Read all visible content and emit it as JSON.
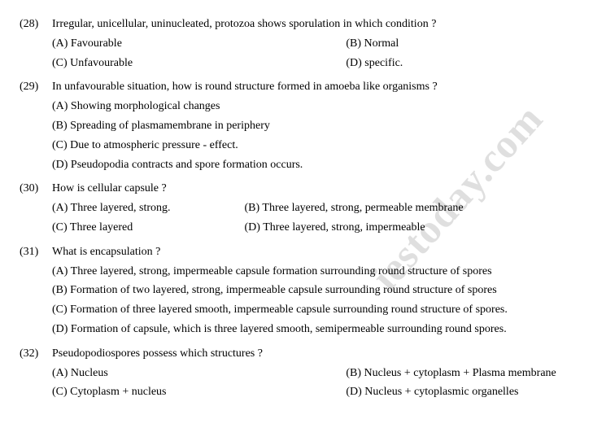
{
  "watermark": "iestoday.com",
  "questions": [
    {
      "num": "(28)",
      "text": "Irregular, unicellular, uninucleated, protozoa shows sporulation in which condition ?",
      "layout": "2col",
      "opts": {
        "a": "(A) Favourable",
        "b": "(B) Normal",
        "c": "(C) Unfavourable",
        "d": "(D)  specific."
      }
    },
    {
      "num": "(29)",
      "text": "In unfavourable situation, how is round structure formed in amoeba like organisms ?",
      "layout": "1col",
      "opts": {
        "a": "(A) Showing morphological changes",
        "b": "(B) Spreading of plasmamembrane in periphery",
        "c": "(C) Due to atmospheric pressure - effect.",
        "d": "(D) Pseudopodia contracts and spore formation  occurs."
      }
    },
    {
      "num": "(30)",
      "text": "How is cellular capsule ?",
      "layout": "q30",
      "opts": {
        "a": "(A) Three layered, strong.",
        "b": "(B) Three layered, strong, permeable membrane",
        "c": "(C) Three layered",
        "d": "(D) Three layered, strong, impermeable"
      }
    },
    {
      "num": "(31)",
      "text": "What is encapsulation ?",
      "layout": "1col",
      "opts": {
        "a": "(A) Three layered, strong, impermeable capsule formation surrounding round structure of spores",
        "b": "(B) Formation of two layered, strong, impermeable capsule surrounding round structure of spores",
        "c": "(C) Formation of three layered smooth, impermeable capsule surrounding round structure of spores.",
        "d": "(D) Formation of capsule, which is three layered smooth, semipermeable surrounding round spores."
      }
    },
    {
      "num": "(32)",
      "text": "Pseudopodiospores possess which structures ?",
      "layout": "2col",
      "opts": {
        "a": "(A) Nucleus",
        "b": "(B) Nucleus + cytoplasm + Plasma membrane",
        "c": "(C) Cytoplasm + nucleus",
        "d": "(D) Nucleus + cytoplasmic organelles"
      }
    }
  ]
}
